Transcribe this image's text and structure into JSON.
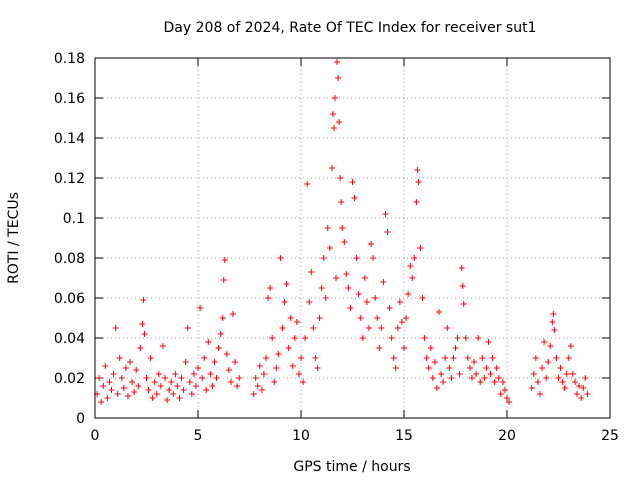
{
  "chart_data": {
    "type": "scatter",
    "title": "Day 208 of 2024, Rate Of TEC Index for receiver sut1",
    "xlabel": "GPS time / hours",
    "ylabel": "ROTI / TECUs",
    "xlim": [
      0,
      25
    ],
    "ylim": [
      0,
      0.18
    ],
    "xticks": [
      "0",
      "5",
      "10",
      "15",
      "20",
      "25"
    ],
    "yticks": [
      "0",
      "0.02",
      "0.04",
      "0.06",
      "0.08",
      "0.1",
      "0.12",
      "0.14",
      "0.16",
      "0.18"
    ],
    "xtick_values": [
      0,
      5,
      10,
      15,
      20,
      25
    ],
    "ytick_values": [
      0,
      0.02,
      0.04,
      0.06,
      0.08,
      0.1,
      0.12,
      0.14,
      0.16,
      0.18
    ],
    "grid": true,
    "marker": "+",
    "series": [
      {
        "name": "ROTI",
        "color": "#ff0000",
        "points": [
          [
            0.1,
            0.012
          ],
          [
            0.2,
            0.02
          ],
          [
            0.3,
            0.008
          ],
          [
            0.4,
            0.016
          ],
          [
            0.5,
            0.026
          ],
          [
            0.6,
            0.01
          ],
          [
            0.7,
            0.018
          ],
          [
            0.8,
            0.014
          ],
          [
            0.9,
            0.022
          ],
          [
            1.0,
            0.045
          ],
          [
            1.1,
            0.012
          ],
          [
            1.2,
            0.03
          ],
          [
            1.3,
            0.02
          ],
          [
            1.4,
            0.015
          ],
          [
            1.5,
            0.025
          ],
          [
            1.6,
            0.011
          ],
          [
            1.7,
            0.028
          ],
          [
            1.8,
            0.018
          ],
          [
            1.9,
            0.013
          ],
          [
            2.0,
            0.024
          ],
          [
            2.1,
            0.016
          ],
          [
            2.2,
            0.035
          ],
          [
            2.3,
            0.047
          ],
          [
            2.35,
            0.059
          ],
          [
            2.4,
            0.042
          ],
          [
            2.5,
            0.02
          ],
          [
            2.6,
            0.014
          ],
          [
            2.7,
            0.03
          ],
          [
            2.8,
            0.01
          ],
          [
            2.9,
            0.018
          ],
          [
            3.0,
            0.012
          ],
          [
            3.1,
            0.022
          ],
          [
            3.2,
            0.016
          ],
          [
            3.3,
            0.036
          ],
          [
            3.4,
            0.02
          ],
          [
            3.5,
            0.009
          ],
          [
            3.6,
            0.014
          ],
          [
            3.7,
            0.018
          ],
          [
            3.8,
            0.012
          ],
          [
            3.9,
            0.022
          ],
          [
            4.0,
            0.016
          ],
          [
            4.1,
            0.01
          ],
          [
            4.2,
            0.02
          ],
          [
            4.3,
            0.014
          ],
          [
            4.4,
            0.028
          ],
          [
            4.5,
            0.045
          ],
          [
            4.6,
            0.018
          ],
          [
            4.7,
            0.012
          ],
          [
            4.8,
            0.022
          ],
          [
            4.9,
            0.016
          ],
          [
            5.0,
            0.025
          ],
          [
            5.1,
            0.055
          ],
          [
            5.2,
            0.02
          ],
          [
            5.3,
            0.03
          ],
          [
            5.4,
            0.014
          ],
          [
            5.5,
            0.038
          ],
          [
            5.6,
            0.022
          ],
          [
            5.7,
            0.016
          ],
          [
            5.8,
            0.028
          ],
          [
            5.9,
            0.02
          ],
          [
            6.0,
            0.035
          ],
          [
            6.1,
            0.042
          ],
          [
            6.2,
            0.05
          ],
          [
            6.25,
            0.069
          ],
          [
            6.3,
            0.079
          ],
          [
            6.4,
            0.032
          ],
          [
            6.5,
            0.024
          ],
          [
            6.6,
            0.018
          ],
          [
            6.7,
            0.052
          ],
          [
            6.8,
            0.028
          ],
          [
            6.9,
            0.016
          ],
          [
            7.0,
            0.02
          ],
          [
            7.7,
            0.012
          ],
          [
            7.8,
            0.02
          ],
          [
            7.9,
            0.016
          ],
          [
            8.0,
            0.026
          ],
          [
            8.1,
            0.014
          ],
          [
            8.2,
            0.022
          ],
          [
            8.3,
            0.03
          ],
          [
            8.4,
            0.06
          ],
          [
            8.5,
            0.065
          ],
          [
            8.6,
            0.04
          ],
          [
            8.7,
            0.018
          ],
          [
            8.8,
            0.025
          ],
          [
            8.9,
            0.032
          ],
          [
            9.0,
            0.08
          ],
          [
            9.1,
            0.045
          ],
          [
            9.2,
            0.058
          ],
          [
            9.3,
            0.067
          ],
          [
            9.4,
            0.035
          ],
          [
            9.5,
            0.05
          ],
          [
            9.6,
            0.026
          ],
          [
            9.7,
            0.04
          ],
          [
            9.8,
            0.048
          ],
          [
            9.9,
            0.022
          ],
          [
            10.0,
            0.03
          ],
          [
            10.1,
            0.018
          ],
          [
            10.2,
            0.04
          ],
          [
            10.3,
            0.117
          ],
          [
            10.4,
            0.058
          ],
          [
            10.5,
            0.073
          ],
          [
            10.6,
            0.045
          ],
          [
            10.7,
            0.03
          ],
          [
            10.8,
            0.025
          ],
          [
            10.9,
            0.05
          ],
          [
            11.0,
            0.065
          ],
          [
            11.1,
            0.08
          ],
          [
            11.2,
            0.06
          ],
          [
            11.3,
            0.095
          ],
          [
            11.4,
            0.085
          ],
          [
            11.5,
            0.125
          ],
          [
            11.55,
            0.152
          ],
          [
            11.6,
            0.145
          ],
          [
            11.65,
            0.16
          ],
          [
            11.7,
            0.07
          ],
          [
            11.75,
            0.178
          ],
          [
            11.8,
            0.17
          ],
          [
            11.85,
            0.148
          ],
          [
            11.9,
            0.12
          ],
          [
            11.95,
            0.108
          ],
          [
            12.0,
            0.095
          ],
          [
            12.1,
            0.088
          ],
          [
            12.2,
            0.072
          ],
          [
            12.3,
            0.065
          ],
          [
            12.4,
            0.055
          ],
          [
            12.5,
            0.118
          ],
          [
            12.6,
            0.11
          ],
          [
            12.7,
            0.08
          ],
          [
            12.8,
            0.062
          ],
          [
            12.9,
            0.05
          ],
          [
            13.0,
            0.04
          ],
          [
            13.1,
            0.07
          ],
          [
            13.2,
            0.058
          ],
          [
            13.3,
            0.045
          ],
          [
            13.4,
            0.087
          ],
          [
            13.5,
            0.08
          ],
          [
            13.6,
            0.06
          ],
          [
            13.7,
            0.05
          ],
          [
            13.8,
            0.035
          ],
          [
            13.9,
            0.045
          ],
          [
            14.0,
            0.068
          ],
          [
            14.1,
            0.102
          ],
          [
            14.2,
            0.093
          ],
          [
            14.3,
            0.055
          ],
          [
            14.4,
            0.04
          ],
          [
            14.5,
            0.03
          ],
          [
            14.6,
            0.025
          ],
          [
            14.7,
            0.045
          ],
          [
            14.8,
            0.058
          ],
          [
            14.9,
            0.048
          ],
          [
            15.0,
            0.035
          ],
          [
            15.1,
            0.05
          ],
          [
            15.2,
            0.062
          ],
          [
            15.3,
            0.076
          ],
          [
            15.4,
            0.07
          ],
          [
            15.5,
            0.08
          ],
          [
            15.6,
            0.108
          ],
          [
            15.65,
            0.124
          ],
          [
            15.7,
            0.118
          ],
          [
            15.8,
            0.085
          ],
          [
            15.9,
            0.06
          ],
          [
            16.0,
            0.04
          ],
          [
            16.1,
            0.03
          ],
          [
            16.2,
            0.025
          ],
          [
            16.3,
            0.035
          ],
          [
            16.4,
            0.02
          ],
          [
            16.5,
            0.028
          ],
          [
            16.6,
            0.015
          ],
          [
            16.7,
            0.053
          ],
          [
            16.8,
            0.022
          ],
          [
            16.9,
            0.018
          ],
          [
            17.0,
            0.03
          ],
          [
            17.1,
            0.045
          ],
          [
            17.2,
            0.025
          ],
          [
            17.3,
            0.02
          ],
          [
            17.4,
            0.03
          ],
          [
            17.5,
            0.035
          ],
          [
            17.6,
            0.04
          ],
          [
            17.7,
            0.022
          ],
          [
            17.8,
            0.075
          ],
          [
            17.85,
            0.066
          ],
          [
            17.9,
            0.057
          ],
          [
            18.0,
            0.04
          ],
          [
            18.1,
            0.03
          ],
          [
            18.2,
            0.025
          ],
          [
            18.3,
            0.02
          ],
          [
            18.4,
            0.028
          ],
          [
            18.5,
            0.022
          ],
          [
            18.6,
            0.04
          ],
          [
            18.7,
            0.018
          ],
          [
            18.8,
            0.03
          ],
          [
            18.9,
            0.02
          ],
          [
            19.0,
            0.025
          ],
          [
            19.1,
            0.038
          ],
          [
            19.2,
            0.022
          ],
          [
            19.3,
            0.03
          ],
          [
            19.4,
            0.018
          ],
          [
            19.5,
            0.025
          ],
          [
            19.6,
            0.02
          ],
          [
            19.7,
            0.012
          ],
          [
            19.8,
            0.018
          ],
          [
            19.9,
            0.014
          ],
          [
            20.0,
            0.01
          ],
          [
            20.1,
            0.008
          ],
          [
            21.2,
            0.015
          ],
          [
            21.3,
            0.022
          ],
          [
            21.4,
            0.03
          ],
          [
            21.5,
            0.018
          ],
          [
            21.6,
            0.012
          ],
          [
            21.7,
            0.025
          ],
          [
            21.8,
            0.038
          ],
          [
            21.9,
            0.02
          ],
          [
            22.0,
            0.028
          ],
          [
            22.1,
            0.036
          ],
          [
            22.2,
            0.048
          ],
          [
            22.25,
            0.052
          ],
          [
            22.3,
            0.044
          ],
          [
            22.4,
            0.03
          ],
          [
            22.5,
            0.02
          ],
          [
            22.6,
            0.025
          ],
          [
            22.7,
            0.018
          ],
          [
            22.8,
            0.015
          ],
          [
            22.9,
            0.022
          ],
          [
            23.0,
            0.03
          ],
          [
            23.1,
            0.036
          ],
          [
            23.2,
            0.022
          ],
          [
            23.3,
            0.018
          ],
          [
            23.4,
            0.012
          ],
          [
            23.5,
            0.016
          ],
          [
            23.6,
            0.01
          ],
          [
            23.7,
            0.015
          ],
          [
            23.8,
            0.02
          ],
          [
            23.9,
            0.012
          ]
        ]
      }
    ]
  }
}
